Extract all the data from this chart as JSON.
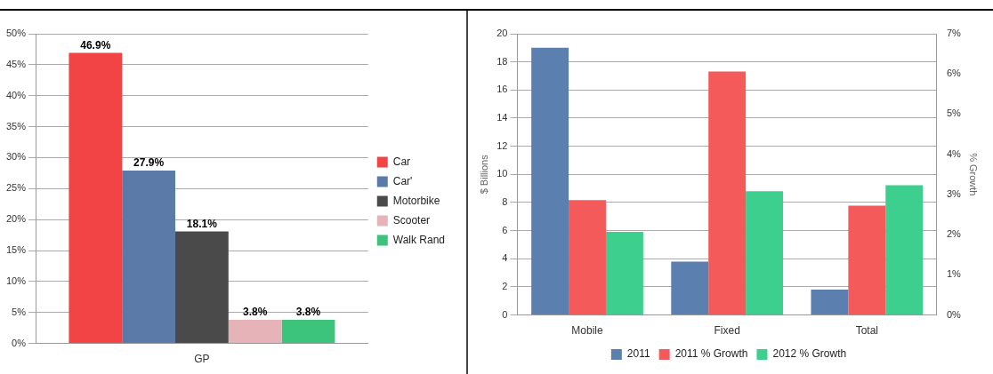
{
  "chart_data": [
    {
      "type": "bar",
      "categories": [
        "GP"
      ],
      "xlabel": null,
      "series": [
        {
          "name": "Car",
          "color": "#f24444",
          "values": [
            46.9
          ],
          "value_labels": [
            "46.9%"
          ]
        },
        {
          "name": "Car'",
          "color": "#5b7aa8",
          "values": [
            27.9
          ],
          "value_labels": [
            "27.9%"
          ]
        },
        {
          "name": "Motorbike",
          "color": "#4a4a4a",
          "values": [
            18.1
          ],
          "value_labels": [
            "18.1%"
          ]
        },
        {
          "name": "Scooter",
          "color": "#e6b3b8",
          "values": [
            3.8
          ],
          "value_labels": [
            "3.8%"
          ]
        },
        {
          "name": "Walk Rand",
          "color": "#3cc47c",
          "values": [
            3.8
          ],
          "value_labels": [
            "3.8%"
          ]
        }
      ],
      "ylim": [
        0,
        50
      ],
      "yticks": [
        {
          "value": 0,
          "label": "0%"
        },
        {
          "value": 5,
          "label": "5%"
        },
        {
          "value": 10,
          "label": "10%"
        },
        {
          "value": 15,
          "label": "15%"
        },
        {
          "value": 20,
          "label": "20%"
        },
        {
          "value": 25,
          "label": "25%"
        },
        {
          "value": 30,
          "label": "30%"
        },
        {
          "value": 35,
          "label": "35%"
        },
        {
          "value": 40,
          "label": "40%"
        },
        {
          "value": 45,
          "label": "45%"
        },
        {
          "value": 50,
          "label": "50%"
        }
      ],
      "grid": "y",
      "legend": "right"
    },
    {
      "type": "bar",
      "categories": [
        "Mobile",
        "Fixed",
        "Total"
      ],
      "ylabel": "$ Billions",
      "y2label": "% Growth",
      "series": [
        {
          "name": "2011",
          "color": "#5b7fae",
          "values": [
            19,
            3.8,
            1.8
          ]
        },
        {
          "name": "2011 % Growth",
          "color": "#f55a5a",
          "values": [
            2.86,
            6.06,
            2.72
          ],
          "axis": "y2"
        },
        {
          "name": "2012 % Growth",
          "color": "#3dcf8e",
          "values": [
            2.07,
            3.08,
            3.23
          ],
          "axis": "y2"
        }
      ],
      "ylim": [
        0,
        20
      ],
      "yticks": [
        0,
        2,
        4,
        6,
        8,
        10,
        12,
        14,
        16,
        18,
        20
      ],
      "y2lim": [
        0,
        7
      ],
      "y2ticks": [
        {
          "value": 0,
          "label": "0%"
        },
        {
          "value": 1,
          "label": "1%"
        },
        {
          "value": 2,
          "label": "2%"
        },
        {
          "value": 3,
          "label": "3%"
        },
        {
          "value": 4,
          "label": "4%"
        },
        {
          "value": 5,
          "label": "5%"
        },
        {
          "value": 6,
          "label": "6%"
        },
        {
          "value": 7,
          "label": "7%"
        }
      ],
      "grid": "y",
      "legend": "bottom"
    }
  ]
}
